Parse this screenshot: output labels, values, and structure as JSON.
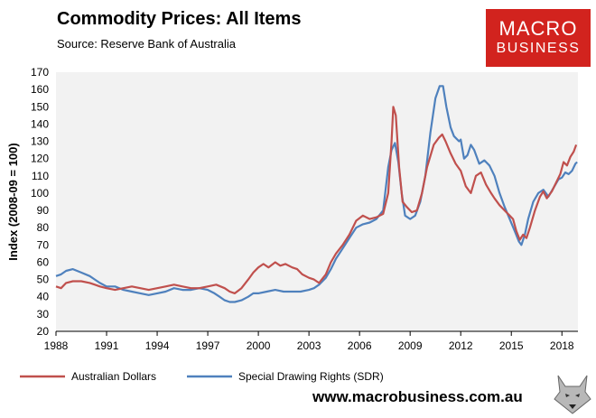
{
  "header": {
    "title": "Commodity Prices: All Items",
    "source": "Source:  Reserve Bank of Australia"
  },
  "logo": {
    "line1": "MACRO",
    "line2": "BUSINESS"
  },
  "footer": {
    "url": "www.macrobusiness.com.au"
  },
  "colors": {
    "aud": "#c0504d",
    "sdr": "#4f81bd",
    "logo_bg": "#d2231e",
    "plot_bg": "#f2f2f2"
  },
  "chart_data": {
    "type": "line",
    "title": "Commodity Prices: All Items",
    "xlabel": "",
    "ylabel": "Index (2008-09 = 100)",
    "xlim": [
      1988,
      2018.95
    ],
    "ylim": [
      20,
      170
    ],
    "x_ticks": [
      1988,
      1991,
      1994,
      1997,
      2000,
      2003,
      2006,
      2009,
      2012,
      2015,
      2018
    ],
    "y_ticks": [
      20,
      30,
      40,
      50,
      60,
      70,
      80,
      90,
      100,
      110,
      120,
      130,
      140,
      150,
      160,
      170
    ],
    "legend_position": "bottom",
    "series": [
      {
        "name": "Australian Dollars",
        "color": "#c0504d",
        "points": [
          [
            1988.0,
            46
          ],
          [
            1988.3,
            45
          ],
          [
            1988.6,
            48
          ],
          [
            1989.0,
            49
          ],
          [
            1989.5,
            49
          ],
          [
            1990.0,
            48
          ],
          [
            1990.3,
            47
          ],
          [
            1990.6,
            46
          ],
          [
            1991.0,
            45
          ],
          [
            1991.5,
            44
          ],
          [
            1992.0,
            45
          ],
          [
            1992.5,
            46
          ],
          [
            1993.0,
            45
          ],
          [
            1993.5,
            44
          ],
          [
            1994.0,
            45
          ],
          [
            1994.5,
            46
          ],
          [
            1995.0,
            47
          ],
          [
            1995.5,
            46
          ],
          [
            1996.0,
            45
          ],
          [
            1996.5,
            45
          ],
          [
            1997.0,
            46
          ],
          [
            1997.5,
            47
          ],
          [
            1998.0,
            45
          ],
          [
            1998.3,
            43
          ],
          [
            1998.6,
            42
          ],
          [
            1999.0,
            45
          ],
          [
            1999.4,
            50
          ],
          [
            1999.7,
            54
          ],
          [
            2000.0,
            57
          ],
          [
            2000.3,
            59
          ],
          [
            2000.6,
            57
          ],
          [
            2001.0,
            60
          ],
          [
            2001.3,
            58
          ],
          [
            2001.6,
            59
          ],
          [
            2002.0,
            57
          ],
          [
            2002.3,
            56
          ],
          [
            2002.6,
            53
          ],
          [
            2003.0,
            51
          ],
          [
            2003.3,
            50
          ],
          [
            2003.6,
            48
          ],
          [
            2004.0,
            53
          ],
          [
            2004.3,
            60
          ],
          [
            2004.6,
            65
          ],
          [
            2005.0,
            70
          ],
          [
            2005.4,
            76
          ],
          [
            2005.8,
            84
          ],
          [
            2006.2,
            87
          ],
          [
            2006.6,
            85
          ],
          [
            2007.0,
            86
          ],
          [
            2007.4,
            88
          ],
          [
            2007.7,
            100
          ],
          [
            2007.9,
            130
          ],
          [
            2008.0,
            150
          ],
          [
            2008.15,
            145
          ],
          [
            2008.35,
            115
          ],
          [
            2008.55,
            95
          ],
          [
            2008.8,
            92
          ],
          [
            2009.1,
            89
          ],
          [
            2009.4,
            90
          ],
          [
            2009.7,
            100
          ],
          [
            2010.0,
            115
          ],
          [
            2010.4,
            128
          ],
          [
            2010.7,
            132
          ],
          [
            2010.9,
            134
          ],
          [
            2011.1,
            130
          ],
          [
            2011.4,
            123
          ],
          [
            2011.7,
            117
          ],
          [
            2012.0,
            113
          ],
          [
            2012.3,
            104
          ],
          [
            2012.6,
            100
          ],
          [
            2012.9,
            110
          ],
          [
            2013.2,
            112
          ],
          [
            2013.5,
            105
          ],
          [
            2013.8,
            100
          ],
          [
            2014.0,
            97
          ],
          [
            2014.3,
            93
          ],
          [
            2014.6,
            90
          ],
          [
            2014.9,
            87
          ],
          [
            2015.1,
            85
          ],
          [
            2015.3,
            78
          ],
          [
            2015.5,
            73
          ],
          [
            2015.7,
            76
          ],
          [
            2015.9,
            74
          ],
          [
            2016.1,
            80
          ],
          [
            2016.4,
            90
          ],
          [
            2016.7,
            98
          ],
          [
            2016.9,
            101
          ],
          [
            2017.1,
            97
          ],
          [
            2017.4,
            101
          ],
          [
            2017.7,
            107
          ],
          [
            2017.9,
            111
          ],
          [
            2018.1,
            118
          ],
          [
            2018.3,
            116
          ],
          [
            2018.5,
            121
          ],
          [
            2018.7,
            124
          ],
          [
            2018.85,
            128
          ]
        ]
      },
      {
        "name": "Special Drawing Rights (SDR)",
        "color": "#4f81bd",
        "points": [
          [
            1988.0,
            52
          ],
          [
            1988.3,
            53
          ],
          [
            1988.6,
            55
          ],
          [
            1989.0,
            56
          ],
          [
            1989.5,
            54
          ],
          [
            1990.0,
            52
          ],
          [
            1990.3,
            50
          ],
          [
            1990.6,
            48
          ],
          [
            1991.0,
            46
          ],
          [
            1991.5,
            46
          ],
          [
            1992.0,
            44
          ],
          [
            1992.5,
            43
          ],
          [
            1993.0,
            42
          ],
          [
            1993.5,
            41
          ],
          [
            1994.0,
            42
          ],
          [
            1994.5,
            43
          ],
          [
            1995.0,
            45
          ],
          [
            1995.5,
            44
          ],
          [
            1996.0,
            44
          ],
          [
            1996.5,
            45
          ],
          [
            1997.0,
            44
          ],
          [
            1997.4,
            42
          ],
          [
            1997.7,
            40
          ],
          [
            1998.0,
            38
          ],
          [
            1998.3,
            37
          ],
          [
            1998.6,
            37
          ],
          [
            1999.0,
            38
          ],
          [
            1999.4,
            40
          ],
          [
            1999.7,
            42
          ],
          [
            2000.0,
            42
          ],
          [
            2000.5,
            43
          ],
          [
            2001.0,
            44
          ],
          [
            2001.5,
            43
          ],
          [
            2002.0,
            43
          ],
          [
            2002.5,
            43
          ],
          [
            2003.0,
            44
          ],
          [
            2003.3,
            45
          ],
          [
            2003.6,
            47
          ],
          [
            2004.0,
            51
          ],
          [
            2004.3,
            56
          ],
          [
            2004.6,
            62
          ],
          [
            2005.0,
            68
          ],
          [
            2005.4,
            74
          ],
          [
            2005.8,
            80
          ],
          [
            2006.2,
            82
          ],
          [
            2006.6,
            83
          ],
          [
            2007.0,
            85
          ],
          [
            2007.4,
            90
          ],
          [
            2007.7,
            115
          ],
          [
            2007.9,
            125
          ],
          [
            2008.1,
            129
          ],
          [
            2008.3,
            118
          ],
          [
            2008.5,
            100
          ],
          [
            2008.7,
            87
          ],
          [
            2009.0,
            85
          ],
          [
            2009.3,
            87
          ],
          [
            2009.6,
            95
          ],
          [
            2009.9,
            110
          ],
          [
            2010.2,
            135
          ],
          [
            2010.5,
            155
          ],
          [
            2010.75,
            162
          ],
          [
            2010.95,
            162
          ],
          [
            2011.15,
            150
          ],
          [
            2011.4,
            138
          ],
          [
            2011.6,
            133
          ],
          [
            2011.9,
            130
          ],
          [
            2012.0,
            131
          ],
          [
            2012.2,
            120
          ],
          [
            2012.4,
            122
          ],
          [
            2012.6,
            128
          ],
          [
            2012.8,
            125
          ],
          [
            2013.1,
            117
          ],
          [
            2013.4,
            119
          ],
          [
            2013.7,
            116
          ],
          [
            2014.0,
            110
          ],
          [
            2014.3,
            100
          ],
          [
            2014.6,
            92
          ],
          [
            2014.9,
            85
          ],
          [
            2015.2,
            78
          ],
          [
            2015.45,
            72
          ],
          [
            2015.6,
            70
          ],
          [
            2015.8,
            76
          ],
          [
            2016.0,
            85
          ],
          [
            2016.3,
            95
          ],
          [
            2016.6,
            100
          ],
          [
            2016.9,
            102
          ],
          [
            2017.2,
            98
          ],
          [
            2017.5,
            103
          ],
          [
            2017.8,
            108
          ],
          [
            2018.0,
            109
          ],
          [
            2018.2,
            112
          ],
          [
            2018.4,
            111
          ],
          [
            2018.6,
            113
          ],
          [
            2018.8,
            117
          ],
          [
            2018.9,
            118
          ]
        ]
      }
    ]
  }
}
